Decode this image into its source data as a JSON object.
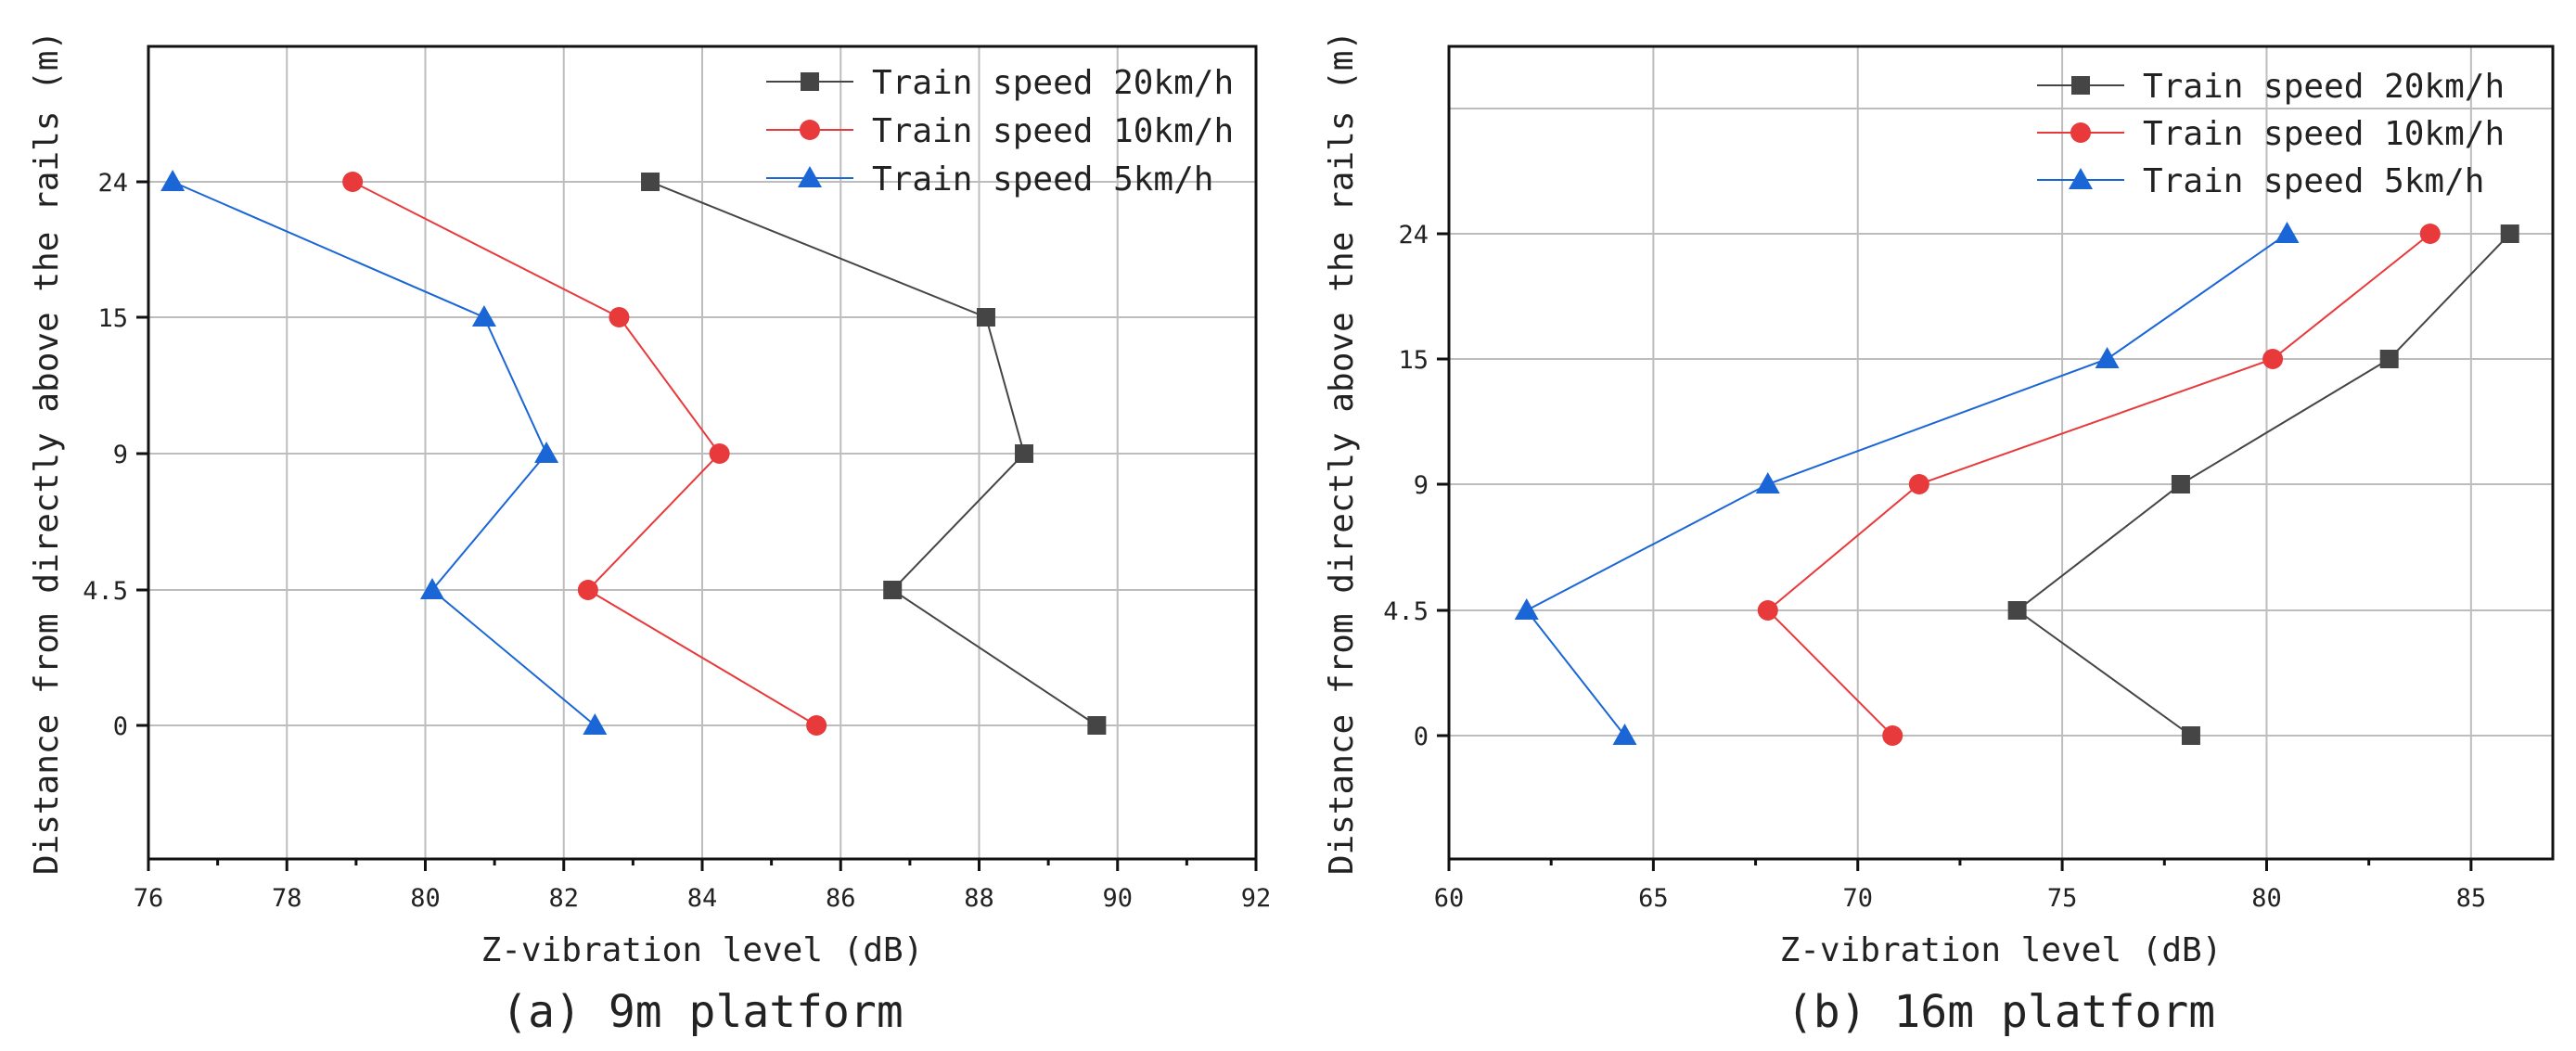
{
  "chart_data": [
    {
      "type": "line",
      "caption": "(a) 9m platform",
      "xlabel": "Z-vibration level (dB)",
      "ylabel": "Distance from directly above the rails (m)",
      "xlim": [
        76,
        92
      ],
      "xticks": [
        76,
        78,
        80,
        82,
        84,
        86,
        88,
        90,
        92
      ],
      "xtick_labels": [
        "76",
        "78",
        "80",
        "82",
        "84",
        "86",
        "88",
        "90",
        "92"
      ],
      "yticks": [
        "0",
        "4.5",
        "9",
        "15",
        "24"
      ],
      "grid": true,
      "legend_position": "top-right",
      "series": [
        {
          "name": "Train speed 20km/h",
          "marker": "square",
          "color": "#454545",
          "values": [
            89.7,
            86.75,
            88.65,
            88.1,
            83.25
          ]
        },
        {
          "name": "Train speed 10km/h",
          "marker": "circle",
          "color": "#e8393b",
          "values": [
            85.65,
            82.35,
            84.25,
            82.8,
            78.95
          ]
        },
        {
          "name": "Train speed 5km/h",
          "marker": "triangle",
          "color": "#1a66d6",
          "values": [
            82.45,
            80.1,
            81.75,
            80.85,
            76.35
          ]
        }
      ]
    },
    {
      "type": "line",
      "caption": "(b) 16m platform",
      "xlabel": "Z-vibration level (dB)",
      "ylabel": "Distance from directly above the rails (m)",
      "xlim": [
        60,
        87
      ],
      "xticks": [
        60,
        65,
        70,
        75,
        80,
        85
      ],
      "xtick_labels": [
        "60",
        "65",
        "70",
        "75",
        "80",
        "85"
      ],
      "yticks": [
        "0",
        "4.5",
        "9",
        "15",
        "24"
      ],
      "grid": true,
      "legend_position": "top-right",
      "series": [
        {
          "name": "Train speed 20km/h",
          "marker": "square",
          "color": "#454545",
          "values": [
            78.15,
            73.9,
            77.9,
            83.0,
            85.95
          ]
        },
        {
          "name": "Train speed 10km/h",
          "marker": "circle",
          "color": "#e8393b",
          "values": [
            70.85,
            67.8,
            71.5,
            80.15,
            84.0
          ]
        },
        {
          "name": "Train speed 5km/h",
          "marker": "triangle",
          "color": "#1a66d6",
          "values": [
            64.3,
            61.9,
            67.8,
            76.1,
            80.5
          ]
        }
      ]
    }
  ]
}
